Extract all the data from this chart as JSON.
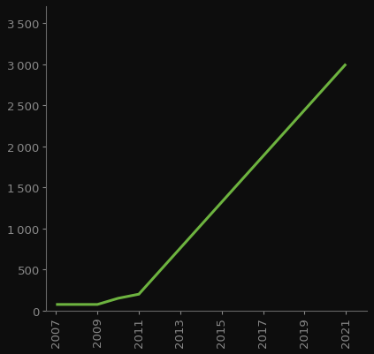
{
  "x": [
    2007,
    2009,
    2010,
    2011,
    2021
  ],
  "y": [
    75,
    75,
    150,
    200,
    3000
  ],
  "line_color": "#6db33f",
  "line_width": 2.2,
  "background_color": "#0d0d0d",
  "tick_label_color": "#888888",
  "xlim": [
    2006.5,
    2022.0
  ],
  "ylim": [
    0,
    3700
  ],
  "yticks": [
    0,
    500,
    1000,
    1500,
    2000,
    2500,
    3000,
    3500
  ],
  "xticks": [
    2007,
    2009,
    2011,
    2013,
    2015,
    2017,
    2019,
    2021
  ],
  "spine_color": "#666666",
  "tick_fontsize": 9.5
}
